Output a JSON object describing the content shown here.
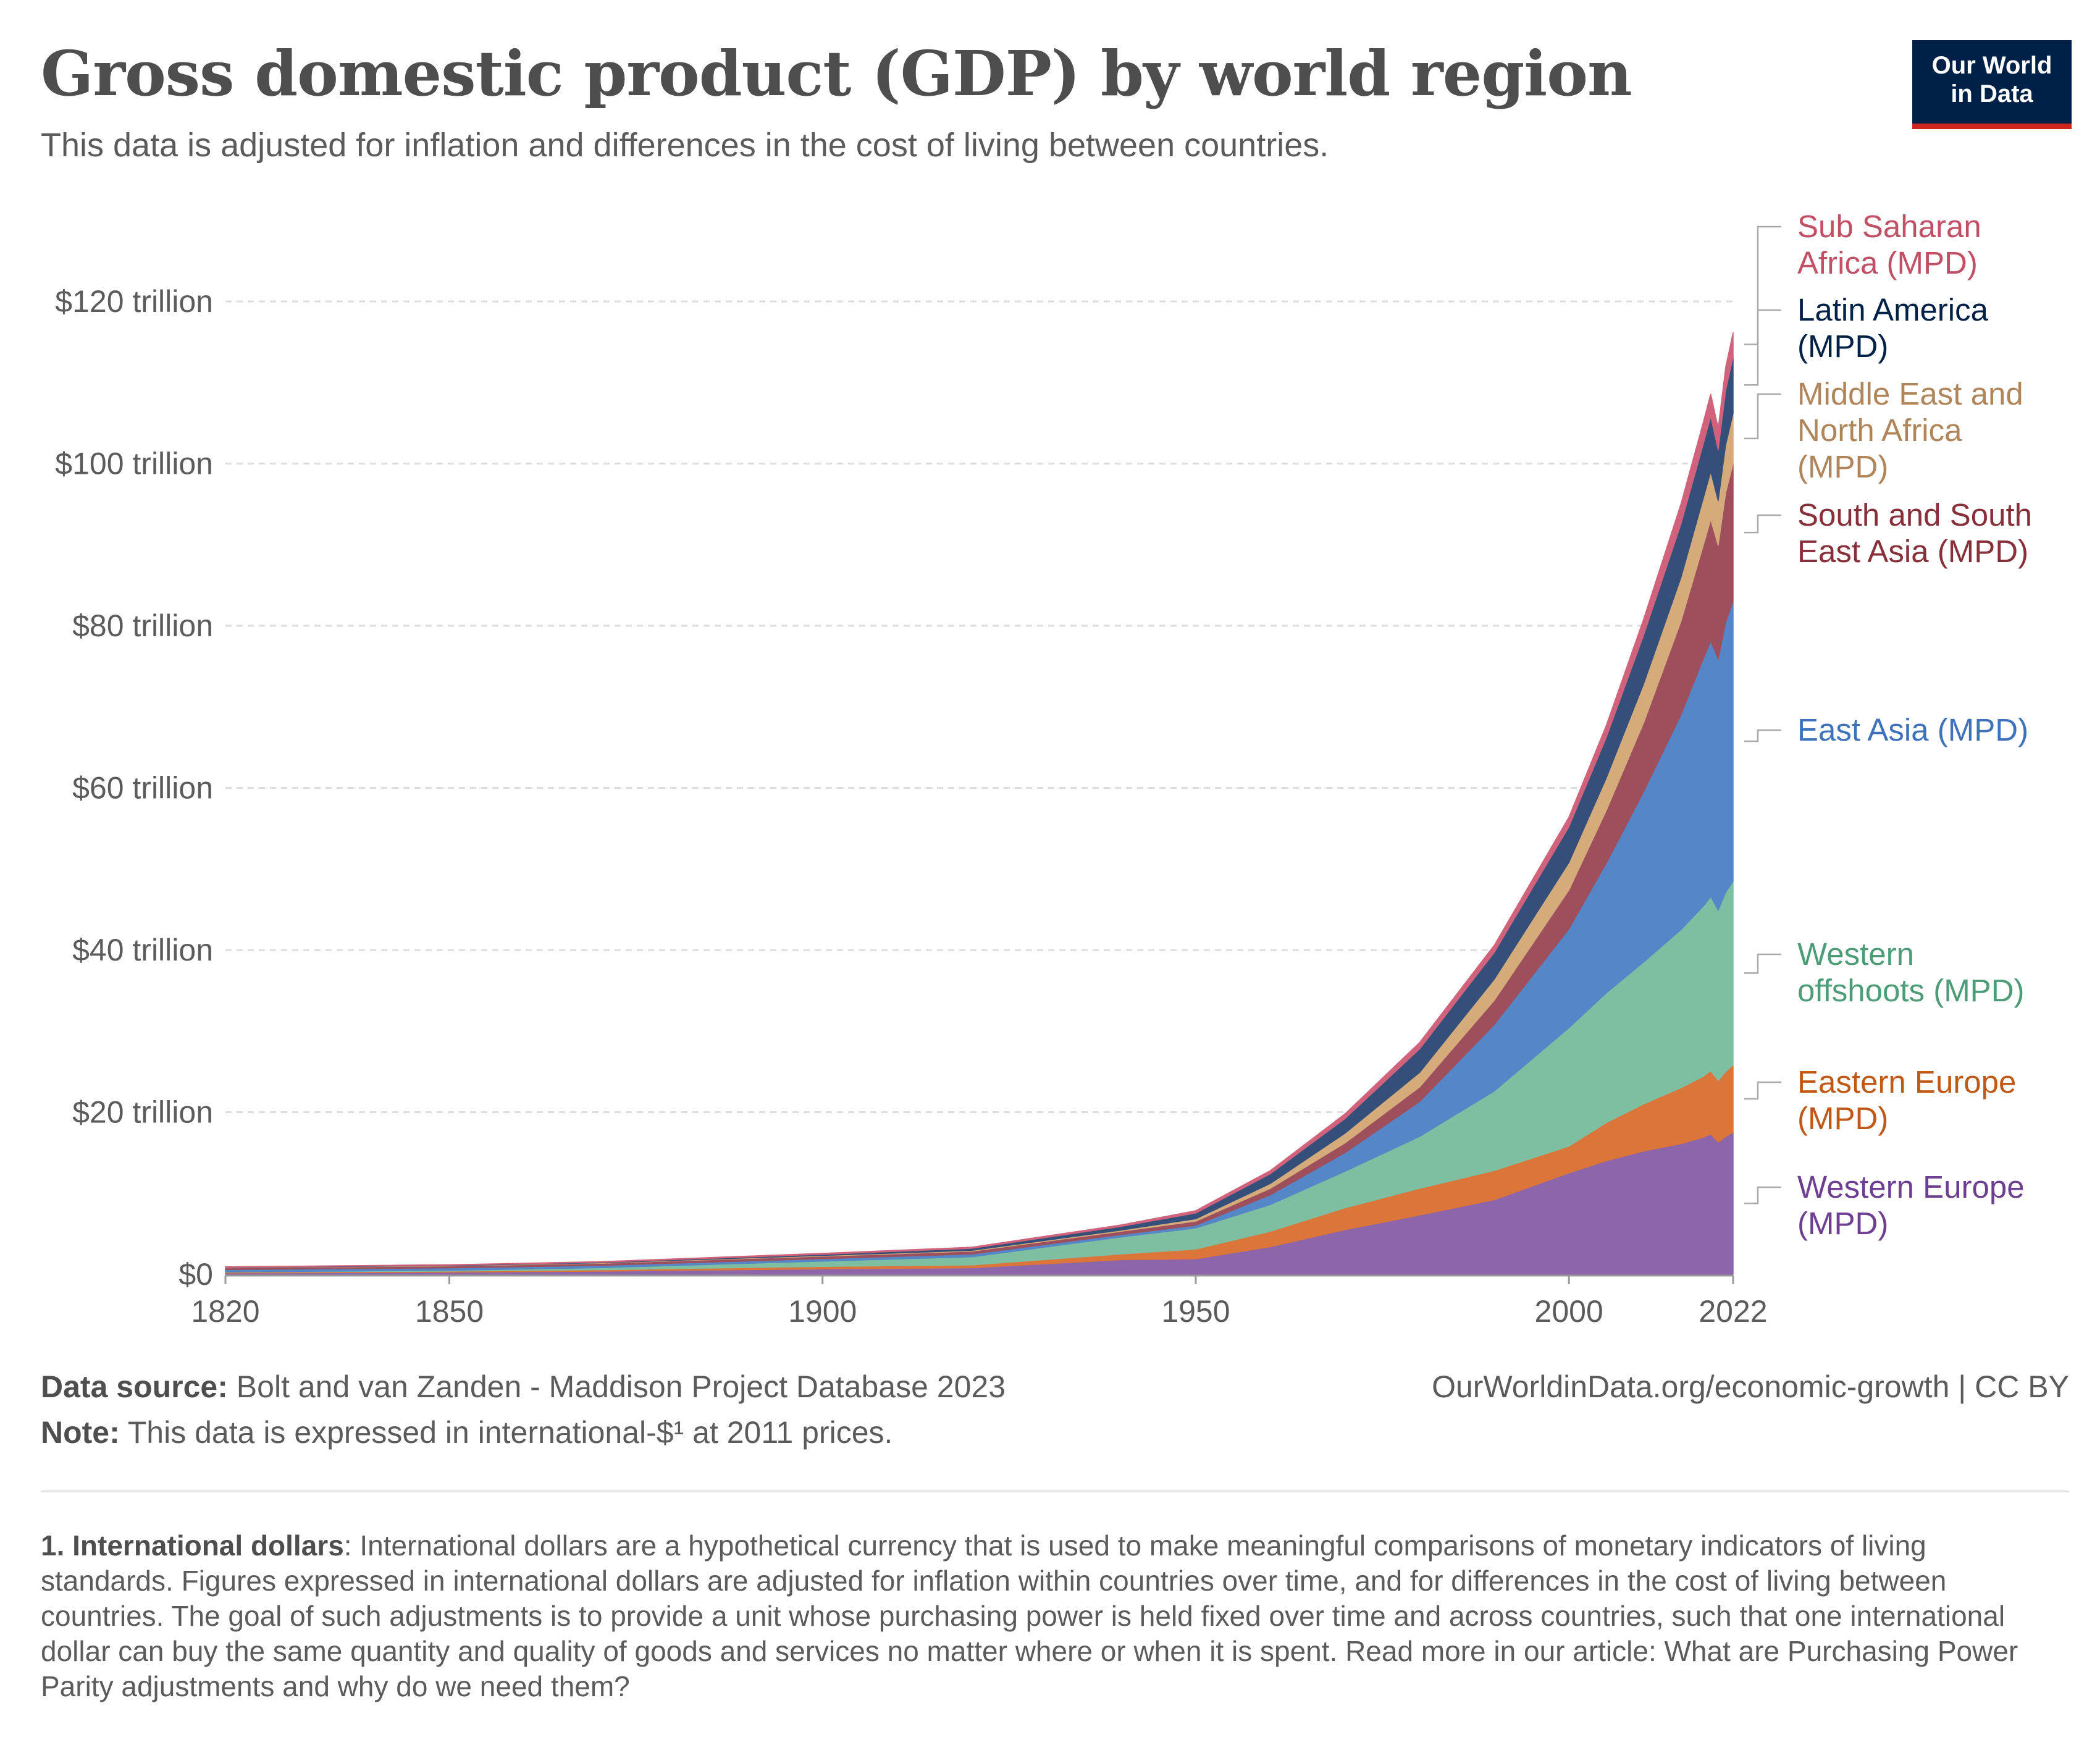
{
  "title": "Gross domestic product (GDP) by world region",
  "subtitle": "This data is adjusted for inflation and differences in the cost of living between countries.",
  "logo": {
    "line1": "Our World",
    "line2": "in Data",
    "bg_color": "#002147",
    "accent_color": "#ce261e"
  },
  "footer": {
    "source_label": "Data source:",
    "source_text": "Bolt and van Zanden - Maddison Project Database 2023",
    "note_label": "Note:",
    "note_text": "This data is expressed in international-$¹ at 2011 prices.",
    "url": "OurWorldinData.org/economic-growth | CC BY"
  },
  "footnote": {
    "label": "1. International dollars",
    "text": ": International dollars are a hypothetical currency that is used to make meaningful comparisons of monetary indicators of living standards. Figures expressed in international dollars are adjusted for inflation within countries over time, and for differences in the cost of living between countries. The goal of such adjustments is to provide a unit whose purchasing power is held fixed over time and across countries, such that one international dollar can buy the same quantity and quality of goods and services no matter where or when it is spent. Read more in our article: What are Purchasing Power Parity adjustments and why do we need them?"
  },
  "chart_data": {
    "type": "area",
    "stacked": true,
    "xlim": [
      1820,
      2022
    ],
    "ylim": [
      0,
      130
    ],
    "y_unit": "trillion international-$ (2011 prices)",
    "x_ticks": [
      1820,
      1850,
      1900,
      1950,
      2000,
      2022
    ],
    "x_tick_labels": [
      "1820",
      "1850",
      "1900",
      "1950",
      "2000",
      "2022"
    ],
    "y_ticks": [
      0,
      20,
      40,
      60,
      80,
      100,
      120
    ],
    "y_tick_labels": [
      "$0",
      "$20 trillion",
      "$40 trillion",
      "$60 trillion",
      "$80 trillion",
      "$100 trillion",
      "$120 trillion"
    ],
    "grid": "horizontal dashed",
    "legend": "right, labels at series ends",
    "x": [
      1820,
      1850,
      1870,
      1900,
      1920,
      1940,
      1950,
      1960,
      1970,
      1980,
      1990,
      2000,
      2005,
      2010,
      2015,
      2018,
      2019,
      2020,
      2021,
      2022
    ],
    "series": [
      {
        "name": "Western Europe (MPD)",
        "color": "#8c65aa",
        "label_color": "#6d3e91",
        "values": [
          0.16,
          0.26,
          0.38,
          0.67,
          0.8,
          1.8,
          1.9,
          3.4,
          5.5,
          7.3,
          9.2,
          12.5,
          14.0,
          15.2,
          16.1,
          16.9,
          17.3,
          16.3,
          17.0,
          17.5
        ]
      },
      {
        "name": "Eastern Europe (MPD)",
        "color": "#dc7539",
        "label_color": "#c05917",
        "values": [
          0.1,
          0.13,
          0.18,
          0.3,
          0.35,
          0.7,
          1.2,
          1.9,
          2.7,
          3.3,
          3.6,
          3.3,
          4.7,
          5.8,
          6.9,
          7.5,
          7.8,
          7.6,
          8.0,
          8.3
        ]
      },
      {
        "name": "Western offshoots (MPD)",
        "color": "#7ebfa1",
        "label_color": "#4c9c77",
        "values": [
          0.03,
          0.1,
          0.25,
          0.65,
          1.0,
          2.1,
          2.6,
          3.3,
          4.5,
          6.4,
          9.8,
          14.6,
          16.0,
          17.5,
          19.5,
          21.0,
          21.5,
          21.0,
          22.1,
          22.7
        ]
      },
      {
        "name": "East Asia (MPD)",
        "color": "#5486c8",
        "label_color": "#3f72bc",
        "values": [
          0.3,
          0.3,
          0.28,
          0.3,
          0.35,
          0.3,
          0.35,
          1.2,
          2.3,
          4.3,
          8.2,
          12.2,
          16.0,
          21.0,
          26.5,
          30.5,
          31.5,
          31.0,
          33.3,
          34.5
        ]
      },
      {
        "name": "South and South East Asia (MPD)",
        "color": "#9e4f5c",
        "label_color": "#883039",
        "values": [
          0.22,
          0.24,
          0.26,
          0.32,
          0.35,
          0.4,
          0.5,
          0.8,
          1.2,
          1.8,
          3.0,
          4.8,
          6.5,
          8.5,
          11.5,
          14.0,
          15.0,
          14.0,
          16.0,
          17.0
        ]
      },
      {
        "name": "Middle East and North Africa (MPD)",
        "color": "#d6ab7c",
        "label_color": "#b08559",
        "values": [
          0.04,
          0.05,
          0.06,
          0.08,
          0.1,
          0.15,
          0.3,
          0.6,
          1.2,
          1.8,
          2.6,
          3.4,
          4.0,
          4.8,
          5.4,
          5.8,
          5.9,
          5.5,
          5.9,
          6.2
        ]
      },
      {
        "name": "Latin America (MPD)",
        "color": "#34507a",
        "label_color": "#002147",
        "values": [
          0.03,
          0.05,
          0.07,
          0.15,
          0.25,
          0.45,
          0.7,
          1.2,
          1.8,
          2.9,
          3.3,
          4.4,
          5.0,
          6.0,
          6.6,
          6.7,
          6.8,
          6.3,
          6.7,
          7.0
        ]
      },
      {
        "name": "Sub Saharan Africa (MPD)",
        "color": "#d1627c",
        "label_color": "#c15065",
        "values": [
          0.05,
          0.06,
          0.08,
          0.12,
          0.15,
          0.2,
          0.3,
          0.4,
          0.6,
          0.8,
          0.9,
          1.2,
          1.5,
          2.0,
          2.5,
          2.7,
          2.8,
          2.7,
          2.9,
          3.0
        ]
      }
    ],
    "series_labels": [
      [
        "Sub Saharan",
        "Africa (MPD)"
      ],
      [
        "Latin America",
        "(MPD)"
      ],
      [
        "Middle East and",
        "North Africa",
        "(MPD)"
      ],
      [
        "South and South",
        "East Asia (MPD)"
      ],
      [
        "East Asia (MPD)"
      ],
      [
        "Western",
        "offshoots (MPD)"
      ],
      [
        "Eastern Europe",
        "(MPD)"
      ],
      [
        "Western Europe",
        "(MPD)"
      ]
    ]
  }
}
